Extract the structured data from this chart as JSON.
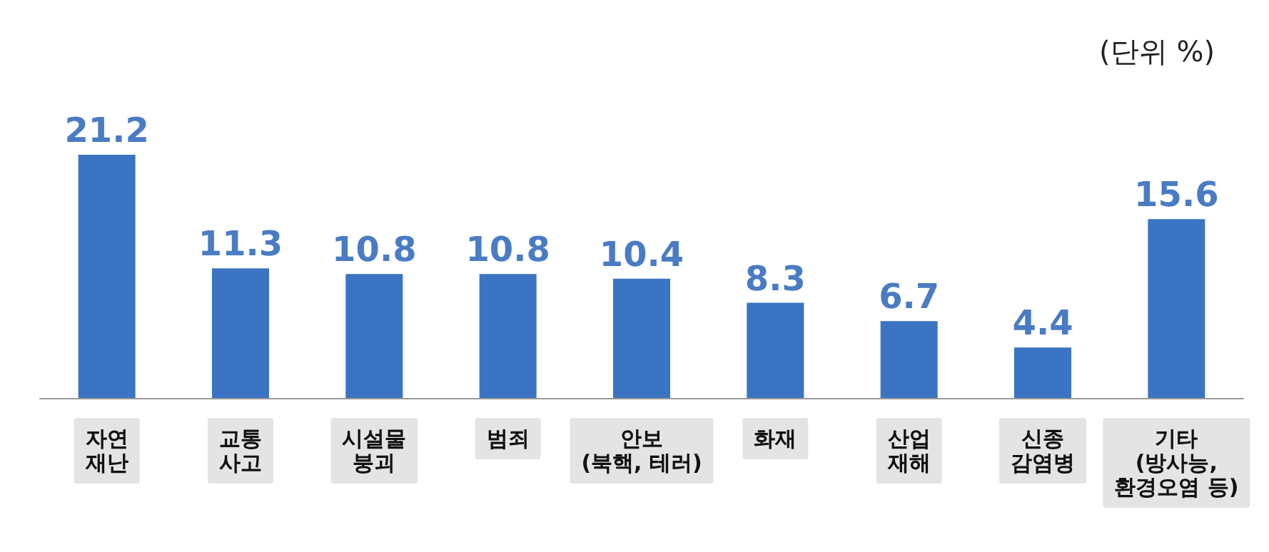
{
  "chart_data": {
    "type": "bar",
    "categories": [
      "자연\n재난",
      "교통\n사고",
      "시설물\n붕괴",
      "범죄",
      "안보\n(북핵, 테러)",
      "화재",
      "산업\n재해",
      "신종\n감염병",
      "기타\n(방사능,\n환경오염 등)"
    ],
    "values": [
      21.2,
      11.3,
      10.8,
      10.8,
      10.4,
      8.3,
      6.7,
      4.4,
      15.6
    ],
    "color": "#3b74c2",
    "data_labels": true,
    "annotations": [
      "(단위 %)"
    ]
  }
}
